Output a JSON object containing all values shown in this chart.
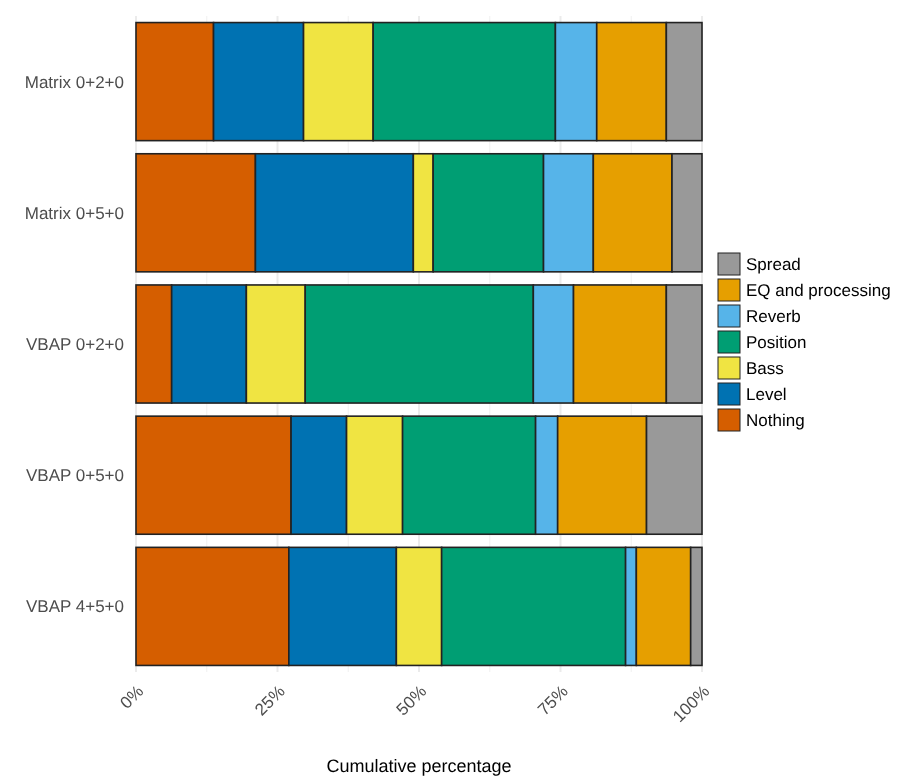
{
  "chart_data": {
    "type": "bar",
    "orientation": "horizontal",
    "stacked": true,
    "xlabel": "Cumulative percentage",
    "categories": [
      "Matrix 0+2+0",
      "Matrix 0+5+0",
      "VBAP 0+2+0",
      "VBAP 0+5+0",
      "VBAP 4+5+0"
    ],
    "xlim": [
      0,
      100
    ],
    "xticks": [
      {
        "value": 0,
        "label": "0%"
      },
      {
        "value": 25,
        "label": "25%"
      },
      {
        "value": 50,
        "label": "50%"
      },
      {
        "value": 75,
        "label": "75%"
      },
      {
        "value": 100,
        "label": "100%"
      }
    ],
    "grid": true,
    "legend": "right",
    "series": [
      {
        "name": "Nothing",
        "color": "#d55e00",
        "values": [
          13.7,
          21.1,
          6.3,
          27.4,
          27.0
        ]
      },
      {
        "name": "Level",
        "color": "#0072b2",
        "values": [
          15.9,
          27.9,
          13.2,
          9.8,
          19.0
        ]
      },
      {
        "name": "Bass",
        "color": "#f0e442",
        "values": [
          12.3,
          3.5,
          10.4,
          9.9,
          8.0
        ]
      },
      {
        "name": "Position",
        "color": "#009e73",
        "values": [
          32.2,
          19.5,
          40.3,
          23.5,
          32.5
        ]
      },
      {
        "name": "Reverb",
        "color": "#56b4e9",
        "values": [
          7.3,
          8.8,
          7.1,
          3.9,
          1.9
        ]
      },
      {
        "name": "EQ and processing",
        "color": "#e69f00",
        "values": [
          12.3,
          13.9,
          16.4,
          15.7,
          9.6
        ]
      },
      {
        "name": "Spread",
        "color": "#999999",
        "values": [
          6.3,
          5.3,
          6.3,
          9.8,
          2.0
        ]
      }
    ]
  }
}
